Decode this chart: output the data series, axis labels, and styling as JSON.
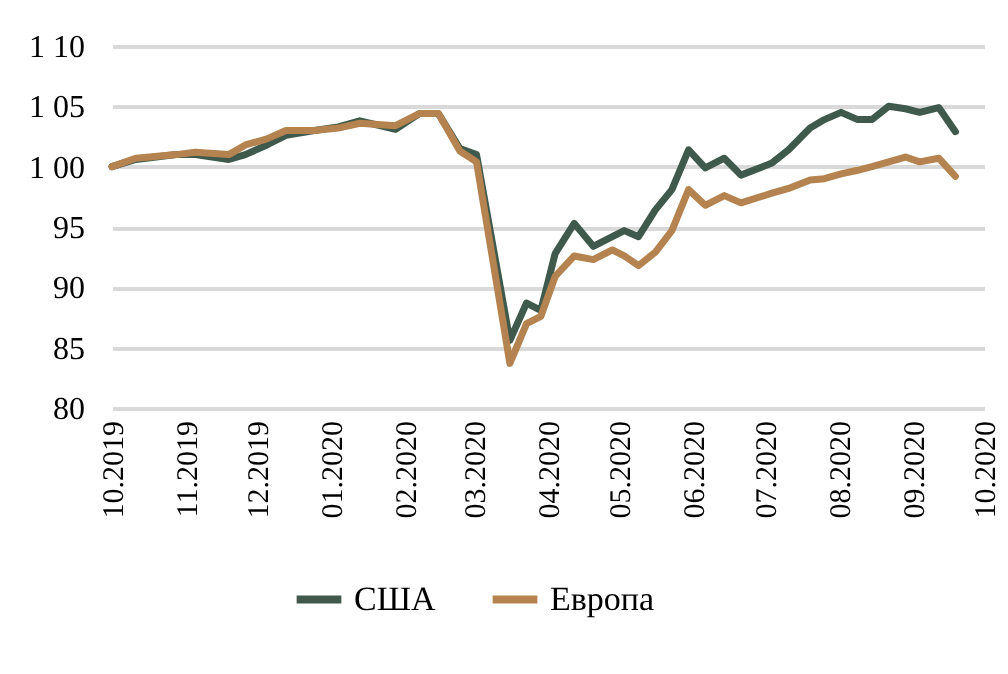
{
  "chart_data": {
    "type": "line",
    "x": [
      "2019-10-01",
      "2019-10-11",
      "2019-10-28",
      "2019-11-05",
      "2019-11-19",
      "2019-11-26",
      "2019-12-05",
      "2019-12-13",
      "2019-12-25",
      "2020-01-04",
      "2020-01-13",
      "2020-01-28",
      "2020-02-07",
      "2020-02-15",
      "2020-02-24",
      "2020-03-02",
      "2020-03-16",
      "2020-03-23",
      "2020-03-29",
      "2020-04-04",
      "2020-04-12",
      "2020-04-20",
      "2020-04-28",
      "2020-05-03",
      "2020-05-09",
      "2020-05-16",
      "2020-05-23",
      "2020-05-30",
      "2020-06-06",
      "2020-06-14",
      "2020-06-21",
      "2020-07-04",
      "2020-07-11",
      "2020-07-20",
      "2020-07-26",
      "2020-08-02",
      "2020-08-09",
      "2020-08-15",
      "2020-08-22",
      "2020-08-29",
      "2020-09-04",
      "2020-09-12",
      "2020-09-19"
    ],
    "series": [
      {
        "name": "США",
        "color": "#3f5a4d",
        "values": [
          100,
          100.6,
          101,
          101,
          100.6,
          101,
          101.8,
          102.6,
          103,
          103.3,
          103.8,
          103.1,
          104.4,
          104.4,
          101.5,
          101,
          85.6,
          88.7,
          88.1,
          92.8,
          95.3,
          93.4,
          94.2,
          94.7,
          94.2,
          96.4,
          98.1,
          101.4,
          99.9,
          100.7,
          99.3,
          100.3,
          101.4,
          103.2,
          103.9,
          104.5,
          103.9,
          103.9,
          105.0,
          104.8,
          104.5,
          104.9,
          102.9
        ]
      },
      {
        "name": "Европа",
        "color": "#b5834f",
        "values": [
          100,
          100.7,
          101,
          101.2,
          101,
          101.8,
          102.3,
          103,
          103,
          103.2,
          103.6,
          103.4,
          104.4,
          104.4,
          101.3,
          100.4,
          83.7,
          87,
          87.6,
          90.9,
          92.6,
          92.3,
          93.1,
          92.6,
          91.8,
          92.9,
          94.7,
          98.1,
          96.8,
          97.6,
          97.0,
          97.8,
          98.2,
          98.9,
          99.0,
          99.4,
          99.7,
          100.0,
          100.4,
          100.8,
          100.4,
          100.7,
          99.2
        ]
      }
    ],
    "xlim": [
      "2019-10-01",
      "2020-10-01"
    ],
    "xticks": [
      {
        "value": "2019-10",
        "label": "10.2019"
      },
      {
        "value": "2019-11",
        "label": "11.2019"
      },
      {
        "value": "2019-12",
        "label": "12.2019"
      },
      {
        "value": "2020-01",
        "label": "01.2020"
      },
      {
        "value": "2020-02",
        "label": "02.2020"
      },
      {
        "value": "2020-03",
        "label": "03.2020"
      },
      {
        "value": "2020-04",
        "label": "04.2020"
      },
      {
        "value": "2020-05",
        "label": "05.2020"
      },
      {
        "value": "2020-06",
        "label": "06.2020"
      },
      {
        "value": "2020-07",
        "label": "07.2020"
      },
      {
        "value": "2020-08",
        "label": "08.2020"
      },
      {
        "value": "2020-09",
        "label": "09.2020"
      },
      {
        "value": "2020-10",
        "label": "10.2020"
      }
    ],
    "ylim": [
      80,
      110
    ],
    "yticks": [
      80,
      85,
      90,
      95,
      {
        "value": 100,
        "label": "1 00"
      },
      {
        "value": 105,
        "label": "1 05"
      },
      {
        "value": 110,
        "label": "1 10"
      }
    ],
    "grid": "y",
    "legend": "bottom",
    "marker": "none",
    "line_style": "solid"
  }
}
